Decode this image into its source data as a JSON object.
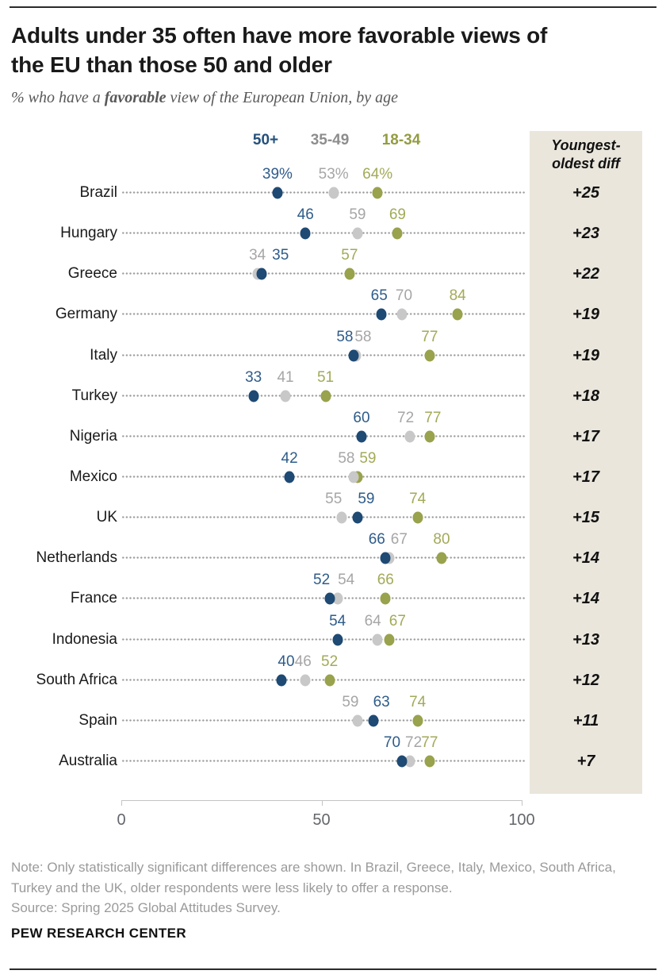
{
  "header": {
    "title_lines": [
      "Adults under 35 often have more favorable views of",
      "the EU than those 50 and older"
    ],
    "subtitle_pre": "% who have a ",
    "subtitle_bold": "favorable",
    "subtitle_post": " view of the European Union, by age"
  },
  "chart_data": {
    "type": "dot-plot",
    "unit": "%",
    "series": [
      {
        "id": "old",
        "name": "50+",
        "dot_color": "#1e4a74",
        "label_color": "#2e5c8a",
        "legend_color": "#24507c"
      },
      {
        "id": "mid",
        "name": "35-49",
        "dot_color": "#c8c8c8",
        "label_color": "#a6a6a6",
        "legend_color": "#8d8d8d"
      },
      {
        "id": "young",
        "name": "18-34",
        "dot_color": "#99a24c",
        "label_color": "#a3aa58",
        "legend_color": "#949c42"
      }
    ],
    "axis": {
      "min": 0,
      "max": 100,
      "tick_values": [
        0,
        50,
        100
      ],
      "tick_labels": [
        "0",
        "50",
        "100"
      ],
      "grid": "dotted-leader-per-row",
      "legend_position": "top"
    },
    "diff_header": [
      "Youngest-",
      "oldest diff"
    ],
    "panel_bg": "#eae6dc",
    "rows": [
      {
        "country": "Brazil",
        "diff": "+25",
        "points": [
          {
            "s": "old",
            "v": 39,
            "label": "39%",
            "dx": 0
          },
          {
            "s": "mid",
            "v": 53,
            "label": "53%",
            "dx": 0
          },
          {
            "s": "young",
            "v": 64,
            "label": "64%",
            "dx": 0
          }
        ]
      },
      {
        "country": "Hungary",
        "diff": "+23",
        "points": [
          {
            "s": "old",
            "v": 46,
            "label": "46",
            "dx": 0
          },
          {
            "s": "mid",
            "v": 59,
            "label": "59",
            "dx": 0
          },
          {
            "s": "young",
            "v": 69,
            "label": "69",
            "dx": 0
          }
        ]
      },
      {
        "country": "Greece",
        "diff": "+22",
        "points": [
          {
            "s": "old",
            "v": 35,
            "label": "35",
            "dx": 24
          },
          {
            "s": "mid",
            "v": 34,
            "label": "34",
            "dx": 0
          },
          {
            "s": "young",
            "v": 57,
            "label": "57",
            "dx": 0
          }
        ]
      },
      {
        "country": "Germany",
        "diff": "+19",
        "points": [
          {
            "s": "old",
            "v": 65,
            "label": "65",
            "dx": -3
          },
          {
            "s": "mid",
            "v": 70,
            "label": "70",
            "dx": 3
          },
          {
            "s": "young",
            "v": 84,
            "label": "84",
            "dx": 0
          }
        ]
      },
      {
        "country": "Italy",
        "diff": "+19",
        "points": [
          {
            "s": "old",
            "v": 58,
            "label": "58",
            "dx": -11
          },
          {
            "s": "mid",
            "v": 58,
            "label": "58",
            "dx": 12,
            "ddx": 3
          },
          {
            "s": "young",
            "v": 77,
            "label": "77",
            "dx": 0
          }
        ]
      },
      {
        "country": "Turkey",
        "diff": "+18",
        "points": [
          {
            "s": "old",
            "v": 33,
            "label": "33",
            "dx": 0
          },
          {
            "s": "mid",
            "v": 41,
            "label": "41",
            "dx": 0
          },
          {
            "s": "young",
            "v": 51,
            "label": "51",
            "dx": 0
          }
        ]
      },
      {
        "country": "Nigeria",
        "diff": "+17",
        "points": [
          {
            "s": "old",
            "v": 60,
            "label": "60",
            "dx": 0
          },
          {
            "s": "mid",
            "v": 72,
            "label": "72",
            "dx": -5
          },
          {
            "s": "young",
            "v": 77,
            "label": "77",
            "dx": 4
          }
        ]
      },
      {
        "country": "Mexico",
        "diff": "+17",
        "points": [
          {
            "s": "old",
            "v": 42,
            "label": "42",
            "dx": 0
          },
          {
            "s": "mid",
            "v": 58,
            "label": "58",
            "dx": -9
          },
          {
            "s": "young",
            "v": 59,
            "label": "59",
            "dx": 13
          }
        ]
      },
      {
        "country": "UK",
        "diff": "+15",
        "points": [
          {
            "s": "old",
            "v": 59,
            "label": "59",
            "dx": 11
          },
          {
            "s": "mid",
            "v": 55,
            "label": "55",
            "dx": -10
          },
          {
            "s": "young",
            "v": 74,
            "label": "74",
            "dx": 0
          }
        ]
      },
      {
        "country": "Netherlands",
        "diff": "+14",
        "points": [
          {
            "s": "old",
            "v": 66,
            "label": "66",
            "dx": -11
          },
          {
            "s": "mid",
            "v": 67,
            "label": "67",
            "dx": 12
          },
          {
            "s": "young",
            "v": 80,
            "label": "80",
            "dx": 0
          }
        ]
      },
      {
        "country": "France",
        "diff": "+14",
        "points": [
          {
            "s": "old",
            "v": 52,
            "label": "52",
            "dx": -10
          },
          {
            "s": "mid",
            "v": 54,
            "label": "54",
            "dx": 11
          },
          {
            "s": "young",
            "v": 66,
            "label": "66",
            "dx": 0
          }
        ]
      },
      {
        "country": "Indonesia",
        "diff": "+13",
        "points": [
          {
            "s": "old",
            "v": 54,
            "label": "54",
            "dx": 0
          },
          {
            "s": "mid",
            "v": 64,
            "label": "64",
            "dx": -6
          },
          {
            "s": "young",
            "v": 67,
            "label": "67",
            "dx": 10
          }
        ]
      },
      {
        "country": "South Africa",
        "diff": "+12",
        "points": [
          {
            "s": "old",
            "v": 40,
            "label": "40",
            "dx": 6
          },
          {
            "s": "mid",
            "v": 46,
            "label": "46",
            "dx": -3
          },
          {
            "s": "young",
            "v": 52,
            "label": "52",
            "dx": 0
          }
        ]
      },
      {
        "country": "Spain",
        "diff": "+11",
        "points": [
          {
            "s": "old",
            "v": 63,
            "label": "63",
            "dx": 10
          },
          {
            "s": "mid",
            "v": 59,
            "label": "59",
            "dx": -9
          },
          {
            "s": "young",
            "v": 74,
            "label": "74",
            "dx": 0
          }
        ]
      },
      {
        "country": "Australia",
        "diff": "+7",
        "points": [
          {
            "s": "old",
            "v": 70,
            "label": "70",
            "dx": -12
          },
          {
            "s": "mid",
            "v": 72,
            "label": "72",
            "dx": 5
          },
          {
            "s": "young",
            "v": 77,
            "label": "77",
            "dx": 0
          }
        ]
      }
    ]
  },
  "footer": {
    "note": "Note: Only statistically significant differences are shown. In Brazil, Greece, Italy, Mexico, South Africa, Turkey and the UK, older respondents were less likely to offer a response.",
    "source": "Source: Spring 2025 Global Attitudes Survey.",
    "brand": "PEW RESEARCH CENTER"
  }
}
